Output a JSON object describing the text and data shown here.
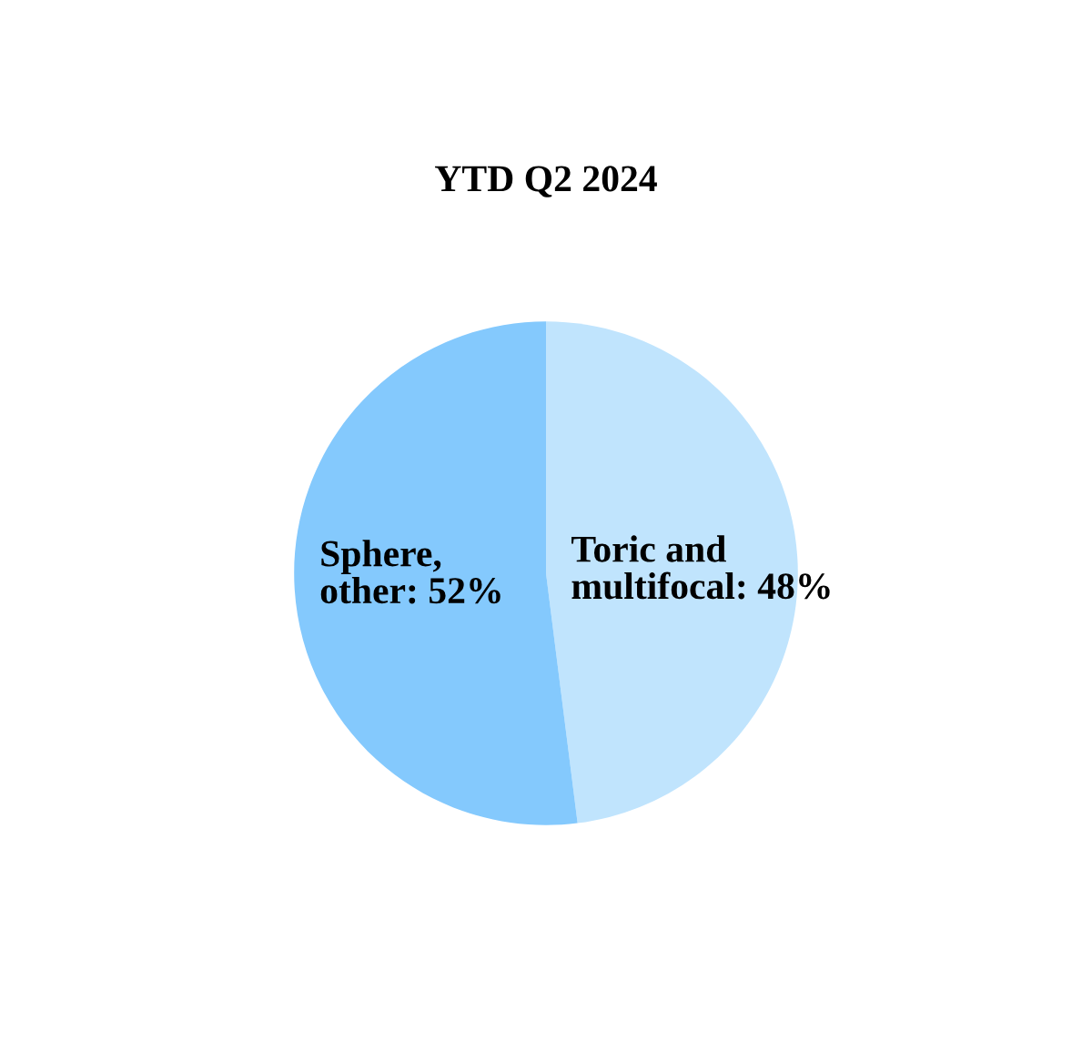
{
  "chart_data": {
    "type": "pie",
    "title": "YTD Q2 2024",
    "categories": [
      "Toric and\nmultifocal",
      "Sphere,\nother"
    ],
    "values": [
      48,
      52
    ],
    "value_labels": [
      "48%",
      "52%"
    ],
    "colors": [
      "#c0e4fd",
      "#84c9fd"
    ],
    "legend": false
  }
}
